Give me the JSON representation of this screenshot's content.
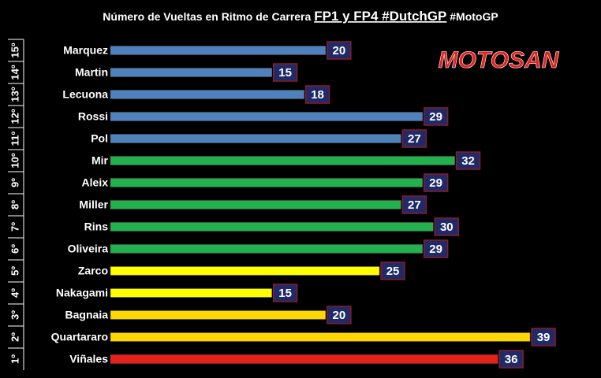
{
  "chart_data": {
    "type": "bar",
    "orientation": "horizontal",
    "title": "Número de Vueltas en Ritmo de Carrera",
    "title_highlight": "FP1 y FP4 #DutchGP",
    "title_tag": "#MotoGP",
    "logo": "MOTOSAN",
    "ranks": [
      "15º",
      "14º",
      "13º",
      "12º",
      "11º",
      "10º",
      "9º",
      "8º",
      "7º",
      "6º",
      "5º",
      "4º",
      "3º",
      "2º",
      "1º"
    ],
    "categories": [
      "Marquez",
      "Martin",
      "Lecuona",
      "Rossi",
      "Pol",
      "Mir",
      "Aleix",
      "Miller",
      "Rins",
      "Oliveira",
      "Zarco",
      "Nakagami",
      "Bagnaia",
      "Quartararo",
      "Viñales"
    ],
    "values": [
      20,
      15,
      18,
      29,
      27,
      32,
      29,
      27,
      30,
      29,
      25,
      15,
      20,
      39,
      36
    ],
    "colors": [
      "#4f81bd",
      "#4f81bd",
      "#4f81bd",
      "#4f81bd",
      "#4f81bd",
      "#22b14c",
      "#22b14c",
      "#22b14c",
      "#22b14c",
      "#22b14c",
      "#ffff00",
      "#ffff00",
      "#ffd700",
      "#ffd700",
      "#e8201a"
    ],
    "xlim": [
      0,
      42
    ]
  }
}
